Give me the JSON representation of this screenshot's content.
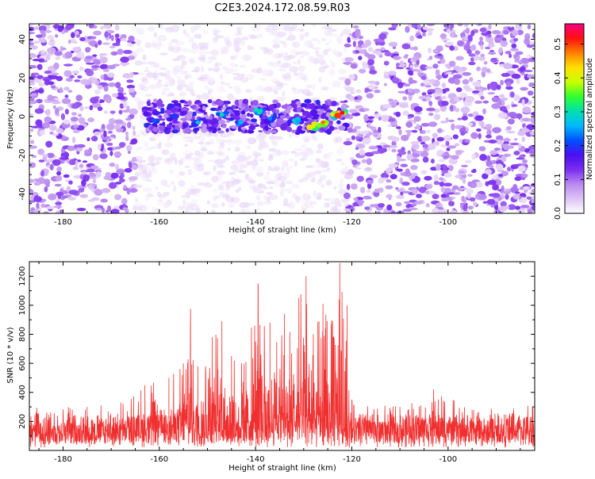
{
  "page_title": "C2E3.2024.172.08.59.R03",
  "chart_data": [
    {
      "type": "heatmap",
      "title": "C2E3.2024.172.08.59.R03",
      "xlabel": "Height of straight line (km)",
      "ylabel": "Frequency (Hz)",
      "xlim": [
        -187,
        -82
      ],
      "ylim": [
        -50,
        48
      ],
      "x_ticks": [
        -180,
        -160,
        -140,
        -120,
        -100
      ],
      "y_ticks": [
        40,
        20,
        0,
        -20,
        -40
      ],
      "grid": false,
      "colorbar": {
        "label": "Normalized spectral amplitude",
        "range": [
          0,
          0.56
        ],
        "ticks": [
          0.0,
          0.1,
          0.2,
          0.3,
          0.4,
          0.5
        ],
        "colormap": [
          "#ffffff",
          "#ddc4f4",
          "#b98af0",
          "#7a2df0",
          "#4b0ff0",
          "#0050ff",
          "#00b8ff",
          "#00e0b0",
          "#30ff30",
          "#c8ff00",
          "#ffe000",
          "#ff8000",
          "#ff1010",
          "#ff0080"
        ]
      },
      "regions": [
        {
          "x_range": [
            -187,
            -165
          ],
          "level": "strong noise",
          "mean_amplitude": 0.08
        },
        {
          "x_range": [
            -165,
            -121
          ],
          "level": "weak noise",
          "mean_amplitude": 0.02
        },
        {
          "x_range": [
            -121,
            -82
          ],
          "level": "strong noise",
          "mean_amplitude": 0.08
        }
      ],
      "signal_band": {
        "x_range": [
          -163,
          -121
        ],
        "frequency_center": 0,
        "frequency_halfwidth": 8,
        "peaks": [
          {
            "x": -161,
            "y": -2,
            "amplitude": 0.22
          },
          {
            "x": -157,
            "y": 0,
            "amplitude": 0.2
          },
          {
            "x": -152,
            "y": -3,
            "amplitude": 0.27
          },
          {
            "x": -147,
            "y": 1,
            "amplitude": 0.3
          },
          {
            "x": -143,
            "y": -3,
            "amplitude": 0.26
          },
          {
            "x": -139,
            "y": 3,
            "amplitude": 0.3
          },
          {
            "x": -137,
            "y": -1,
            "amplitude": 0.24
          },
          {
            "x": -132,
            "y": -2,
            "amplitude": 0.28
          },
          {
            "x": -128,
            "y": -5,
            "amplitude": 0.42
          },
          {
            "x": -126,
            "y": -3,
            "amplitude": 0.48
          },
          {
            "x": -124,
            "y": 1,
            "amplitude": 0.4
          },
          {
            "x": -122,
            "y": 2,
            "amplitude": 0.52
          }
        ]
      }
    },
    {
      "type": "line",
      "xlabel": "Height of straight line (km)",
      "ylabel": "SNR (10 * v/v)",
      "xlim": [
        -187,
        -82
      ],
      "ylim": [
        0,
        1300
      ],
      "x_ticks": [
        -180,
        -160,
        -140,
        -120,
        -100
      ],
      "y_ticks": [
        200,
        400,
        600,
        800,
        1000,
        1200
      ],
      "grid": false,
      "series": [
        {
          "color": "#f03030",
          "baseline_range": [
            50,
            250
          ],
          "envelope": [
            {
              "x": -187,
              "max": 320
            },
            {
              "x": -175,
              "max": 300
            },
            {
              "x": -168,
              "max": 330
            },
            {
              "x": -163,
              "max": 450
            },
            {
              "x": -158,
              "max": 500
            },
            {
              "x": -155,
              "max": 600
            },
            {
              "x": -153.5,
              "max": 975
            },
            {
              "x": -152,
              "max": 580
            },
            {
              "x": -149,
              "max": 780
            },
            {
              "x": -147,
              "max": 890
            },
            {
              "x": -145,
              "max": 650
            },
            {
              "x": -142,
              "max": 610
            },
            {
              "x": -139.5,
              "max": 1150
            },
            {
              "x": -137,
              "max": 880
            },
            {
              "x": -134,
              "max": 940
            },
            {
              "x": -131,
              "max": 1050
            },
            {
              "x": -129.5,
              "max": 1200
            },
            {
              "x": -128,
              "max": 800
            },
            {
              "x": -126,
              "max": 1010
            },
            {
              "x": -124,
              "max": 890
            },
            {
              "x": -122.5,
              "max": 1290
            },
            {
              "x": -121,
              "max": 1000
            },
            {
              "x": -120,
              "max": 350
            },
            {
              "x": -110,
              "max": 300
            },
            {
              "x": -103,
              "max": 420
            },
            {
              "x": -95,
              "max": 280
            },
            {
              "x": -82,
              "max": 330
            }
          ]
        }
      ]
    }
  ]
}
